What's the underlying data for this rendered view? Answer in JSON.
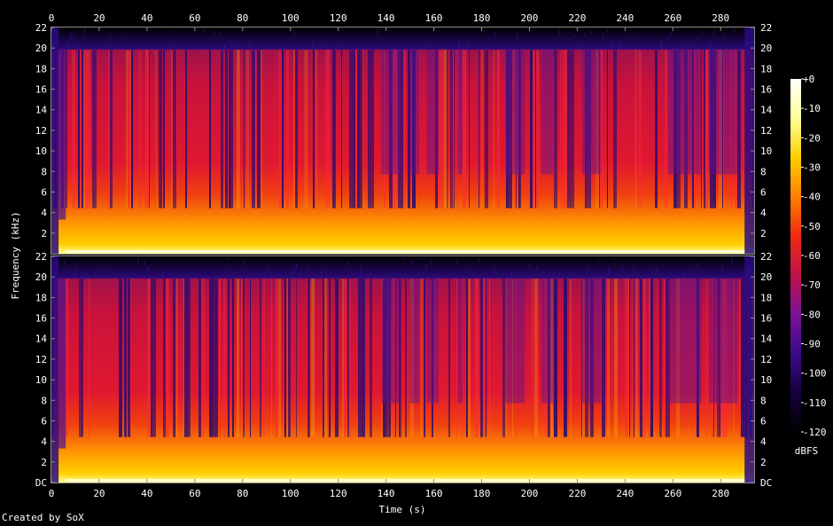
{
  "chart_data": {
    "type": "heatmap",
    "credit": "Created by SoX",
    "x_axis": {
      "label": "Time (s)",
      "ticks": [
        "0",
        "20",
        "40",
        "60",
        "80",
        "100",
        "120",
        "140",
        "160",
        "180",
        "200",
        "220",
        "240",
        "260",
        "280"
      ],
      "range": [
        0,
        294
      ]
    },
    "y_axis": {
      "label": "Frequency (kHz)",
      "range": [
        0,
        22
      ],
      "channel_ticks_top": [
        "22",
        "20",
        "18",
        "16",
        "14",
        "12",
        "10",
        "8",
        "6",
        "4",
        "2"
      ],
      "channel_ticks_bottom": [
        "22",
        "20",
        "18",
        "16",
        "14",
        "12",
        "10",
        "8",
        "6",
        "4",
        "2",
        "DC"
      ]
    },
    "channels": [
      {
        "id": "channel-1",
        "band_limit_khz": 20
      },
      {
        "id": "channel-2",
        "band_limit_khz": 20
      }
    ],
    "colorbar": {
      "unit": "dBFS",
      "range": [
        -120,
        0
      ],
      "ticks": [
        "+0",
        "-10",
        "-20",
        "-30",
        "-40",
        "-50",
        "-60",
        "-70",
        "-80",
        "-90",
        "-100",
        "-110",
        "-120"
      ],
      "colors": [
        "#000000",
        "#180040",
        "#3a0a8a",
        "#7a1298",
        "#c0124a",
        "#f02a10",
        "#ff8000",
        "#ffd000",
        "#ffff9a",
        "#ffffff"
      ]
    },
    "colors": {
      "background": "#000000",
      "frame": "#8c8c8c",
      "text": "#ffffff"
    }
  }
}
